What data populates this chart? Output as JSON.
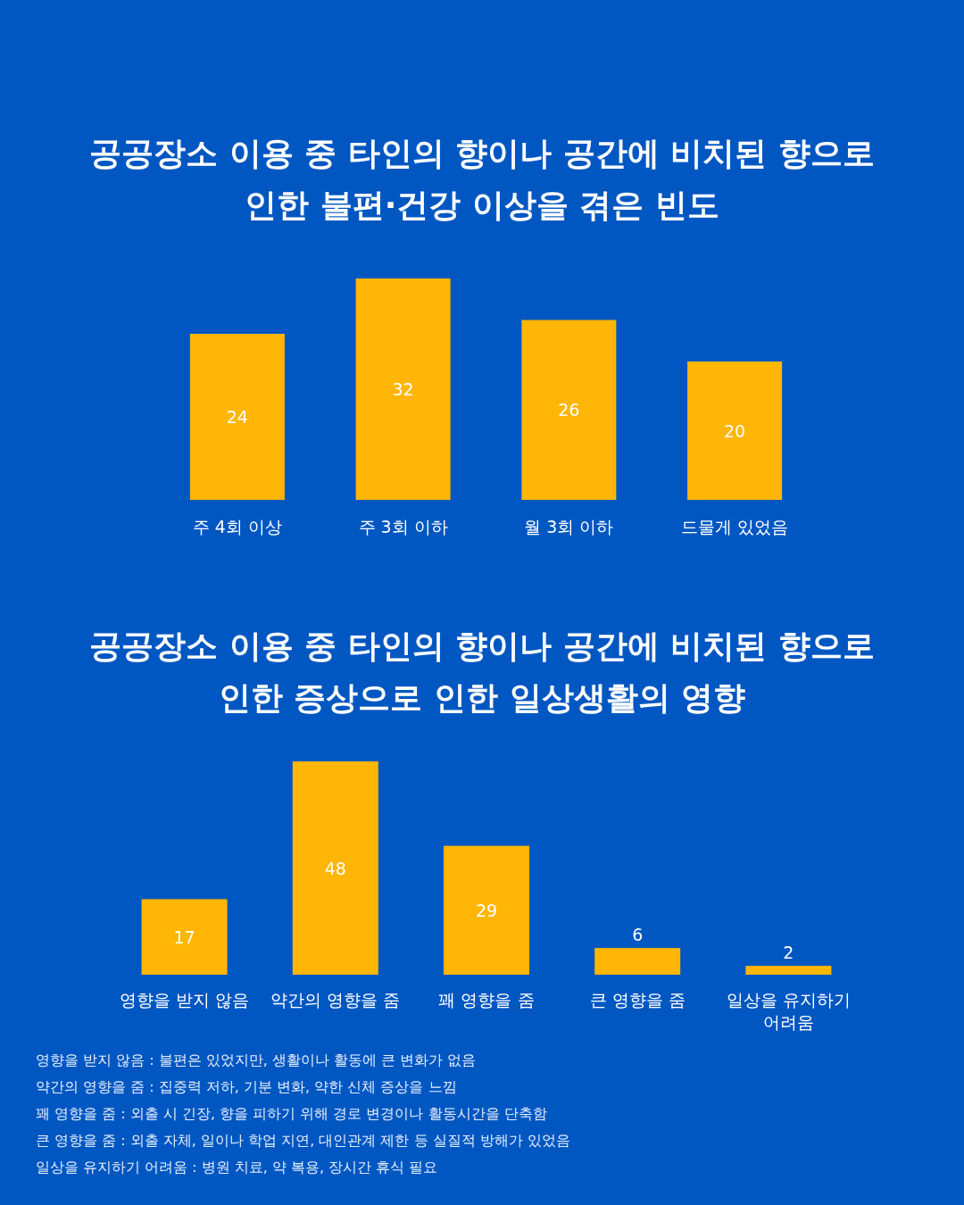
{
  "chart_data": [
    {
      "type": "bar",
      "title": "공공장소 이용 중 타인의 향이나 공간에 비치된 향으로 인한 불편·건강 이상을 겪은 빈도",
      "categories": [
        "주 4회 이상",
        "주 3회 이하",
        "월 3회 이하",
        "드물게 있었음"
      ],
      "values": [
        24,
        32,
        26,
        20
      ],
      "color": "#ffb606",
      "data_labels": true
    },
    {
      "type": "bar",
      "title": "공공장소 이용 중 타인의 향이나 공간에 비치된 향으로 인한 증상으로 인한 일상생활의 영향",
      "categories": [
        "영향을 받지 않음",
        "약간의 영향을 줌",
        "꽤 영향을 줌",
        "큰 영향을 줌",
        "일상을 유지하기 어려움"
      ],
      "values": [
        17,
        48,
        29,
        6,
        2
      ],
      "color": "#ffb606",
      "data_labels": true,
      "annotations": [
        "영향을 받지 않음 : 불편은 있었지만, 생활이나 활동에 큰 변화가 없음",
        "약간의 영향을 줌 : 집중력 저하, 기분 변화, 약한 신체 증상을 느낌",
        "꽤 영향을 줌 : 외출 시 긴장, 향을 피하기 위해 경로 변경이나 활동시간을 단축함",
        "큰 영향을 줌 : 외출 자체, 일이나 학업 지연, 대인관계 제한 등 실질적 방해가 있었음",
        "일상을 유지하기 어려움 : 병원 치료, 약 복용, 장시간 휴식 필요"
      ]
    }
  ]
}
